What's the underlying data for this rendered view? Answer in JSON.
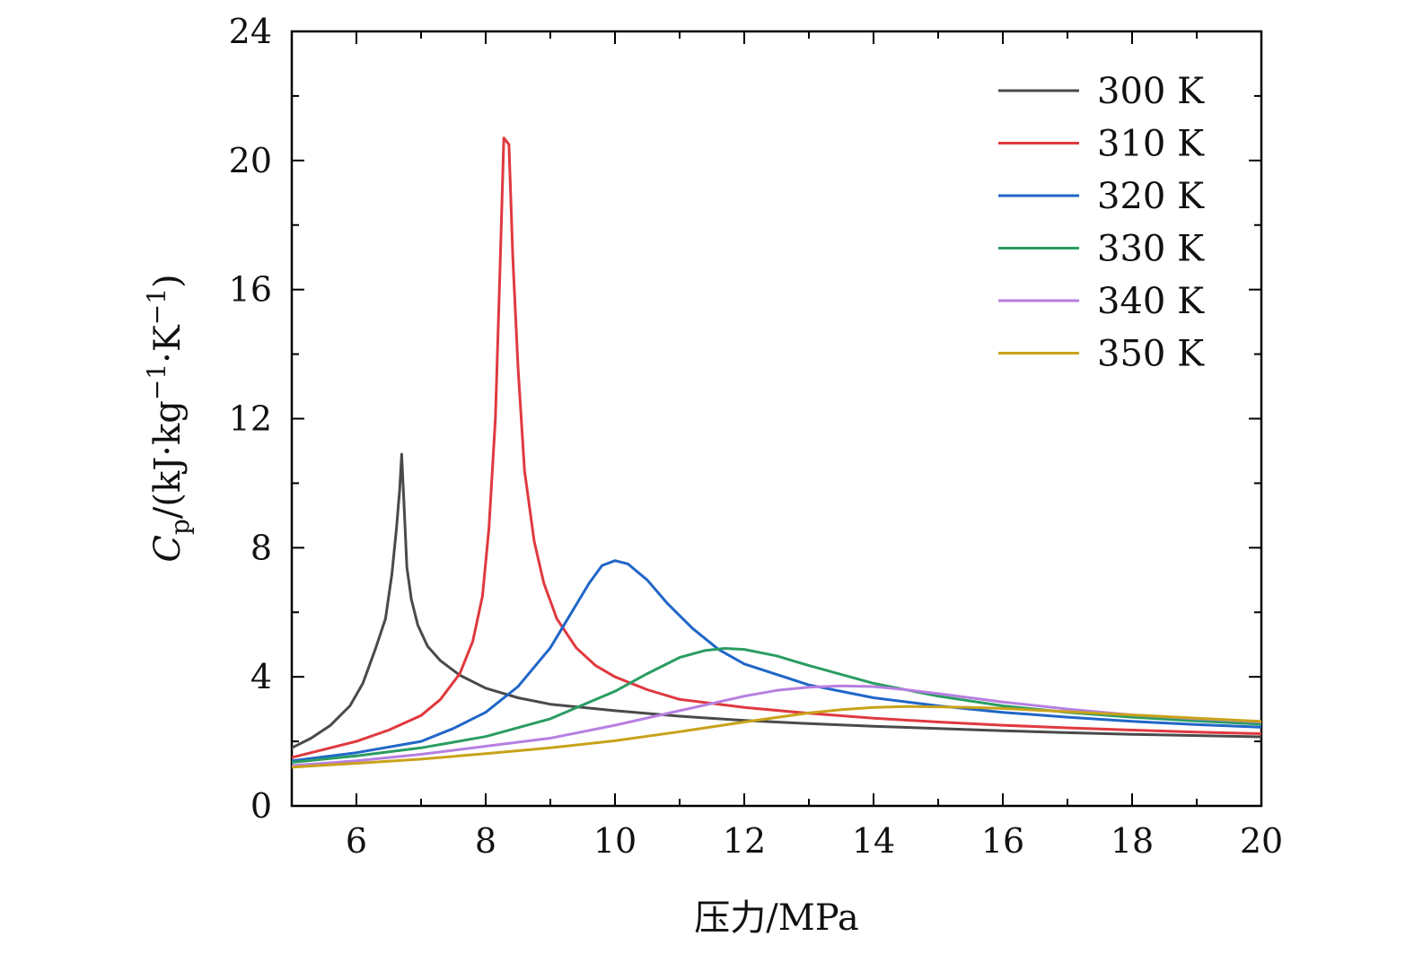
{
  "chart_data": {
    "type": "line",
    "title": "",
    "xlabel": "压力/MPa",
    "ylabel": {
      "symbol": "C",
      "subscript": "p",
      "unit_prefix": "/(kJ·kg",
      "exp1": "−1",
      "unit_mid": "·K",
      "exp2": "−1",
      "unit_suffix": ")"
    },
    "xlim": [
      5,
      20
    ],
    "ylim": [
      0,
      24
    ],
    "x_ticks": [
      "6",
      "8",
      "10",
      "12",
      "14",
      "16",
      "18",
      "20"
    ],
    "y_ticks": [
      "0",
      "4",
      "8",
      "12",
      "16",
      "20",
      "24"
    ],
    "grid": false,
    "legend_position": "top-right",
    "series": [
      {
        "name": "300 K",
        "color": "#4a4a4a",
        "x": [
          5.0,
          5.3,
          5.6,
          5.9,
          6.1,
          6.3,
          6.45,
          6.55,
          6.62,
          6.67,
          6.7,
          6.73,
          6.78,
          6.85,
          6.95,
          7.1,
          7.3,
          7.6,
          8.0,
          8.5,
          9.0,
          10.0,
          11.0,
          12.0,
          13.0,
          14.0,
          15.0,
          16.0,
          17.0,
          18.0,
          19.0,
          20.0
        ],
        "y": [
          1.8,
          2.1,
          2.5,
          3.1,
          3.8,
          4.9,
          5.8,
          7.2,
          8.6,
          9.8,
          10.9,
          9.6,
          7.4,
          6.4,
          5.6,
          4.95,
          4.5,
          4.05,
          3.65,
          3.35,
          3.15,
          2.95,
          2.78,
          2.65,
          2.55,
          2.47,
          2.4,
          2.33,
          2.27,
          2.22,
          2.18,
          2.14
        ]
      },
      {
        "name": "310 K",
        "color": "#e0393e",
        "x": [
          5.0,
          5.5,
          6.0,
          6.5,
          7.0,
          7.3,
          7.6,
          7.8,
          7.95,
          8.05,
          8.15,
          8.22,
          8.28,
          8.32,
          8.36,
          8.42,
          8.5,
          8.6,
          8.75,
          8.9,
          9.1,
          9.4,
          9.7,
          10.0,
          10.5,
          11.0,
          12.0,
          13.0,
          14.0,
          15.0,
          16.0,
          17.0,
          18.0,
          19.0,
          20.0
        ],
        "y": [
          1.5,
          1.75,
          2.0,
          2.35,
          2.8,
          3.3,
          4.1,
          5.1,
          6.5,
          8.6,
          12.0,
          16.5,
          20.7,
          20.6,
          20.5,
          17.0,
          13.6,
          10.4,
          8.2,
          6.9,
          5.8,
          4.9,
          4.35,
          4.0,
          3.6,
          3.3,
          3.05,
          2.87,
          2.72,
          2.6,
          2.5,
          2.42,
          2.35,
          2.29,
          2.24
        ]
      },
      {
        "name": "320 K",
        "color": "#2066c8",
        "x": [
          5.0,
          6.0,
          7.0,
          7.5,
          8.0,
          8.5,
          9.0,
          9.3,
          9.6,
          9.8,
          10.0,
          10.2,
          10.5,
          10.8,
          11.2,
          11.6,
          12.0,
          13.0,
          14.0,
          15.0,
          16.0,
          17.0,
          18.0,
          19.0,
          20.0
        ],
        "y": [
          1.4,
          1.65,
          2.0,
          2.4,
          2.9,
          3.7,
          4.9,
          5.9,
          6.9,
          7.45,
          7.6,
          7.5,
          7.0,
          6.3,
          5.5,
          4.85,
          4.4,
          3.75,
          3.35,
          3.1,
          2.9,
          2.75,
          2.62,
          2.52,
          2.44
        ]
      },
      {
        "name": "330 K",
        "color": "#2a9d62",
        "x": [
          5.0,
          6.0,
          7.0,
          8.0,
          9.0,
          10.0,
          10.5,
          11.0,
          11.4,
          11.7,
          12.0,
          12.5,
          13.0,
          14.0,
          15.0,
          16.0,
          17.0,
          18.0,
          19.0,
          20.0
        ],
        "y": [
          1.35,
          1.55,
          1.8,
          2.15,
          2.7,
          3.55,
          4.1,
          4.6,
          4.82,
          4.88,
          4.85,
          4.65,
          4.35,
          3.8,
          3.4,
          3.1,
          2.9,
          2.75,
          2.63,
          2.53
        ]
      },
      {
        "name": "340 K",
        "color": "#b77fe0",
        "x": [
          5.0,
          6.0,
          7.0,
          8.0,
          9.0,
          10.0,
          11.0,
          12.0,
          12.5,
          13.0,
          13.5,
          14.0,
          14.5,
          15.0,
          16.0,
          17.0,
          18.0,
          19.0,
          20.0
        ],
        "y": [
          1.25,
          1.4,
          1.6,
          1.85,
          2.1,
          2.5,
          2.95,
          3.4,
          3.58,
          3.68,
          3.72,
          3.7,
          3.6,
          3.48,
          3.22,
          3.0,
          2.82,
          2.7,
          2.6
        ]
      },
      {
        "name": "350 K",
        "color": "#c9a21a",
        "x": [
          5.0,
          6.0,
          7.0,
          8.0,
          9.0,
          10.0,
          11.0,
          12.0,
          13.0,
          13.5,
          14.0,
          14.5,
          15.0,
          15.5,
          16.0,
          17.0,
          18.0,
          19.0,
          20.0
        ],
        "y": [
          1.2,
          1.32,
          1.45,
          1.62,
          1.8,
          2.02,
          2.3,
          2.6,
          2.88,
          2.98,
          3.05,
          3.08,
          3.07,
          3.05,
          3.02,
          2.92,
          2.82,
          2.72,
          2.62
        ]
      }
    ]
  }
}
